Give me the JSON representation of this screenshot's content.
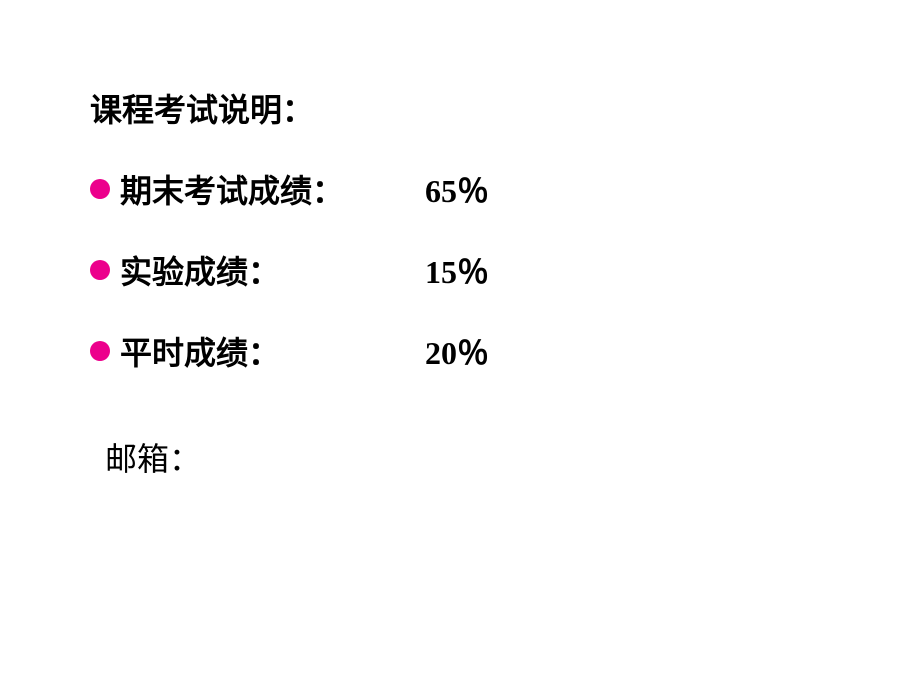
{
  "title": "课程考试说明：",
  "items": [
    {
      "label": "期末考试成绩：",
      "value": "65％"
    },
    {
      "label": "实验成绩：",
      "value": "15％"
    },
    {
      "label": "平时成绩：",
      "value": "20％"
    }
  ],
  "email_label": "邮箱：",
  "colors": {
    "background": "#ffffff",
    "text": "#000000",
    "bullet": "#ec008c"
  },
  "typography": {
    "title_fontsize": 32,
    "item_fontsize": 32,
    "font_weight": "bold"
  }
}
